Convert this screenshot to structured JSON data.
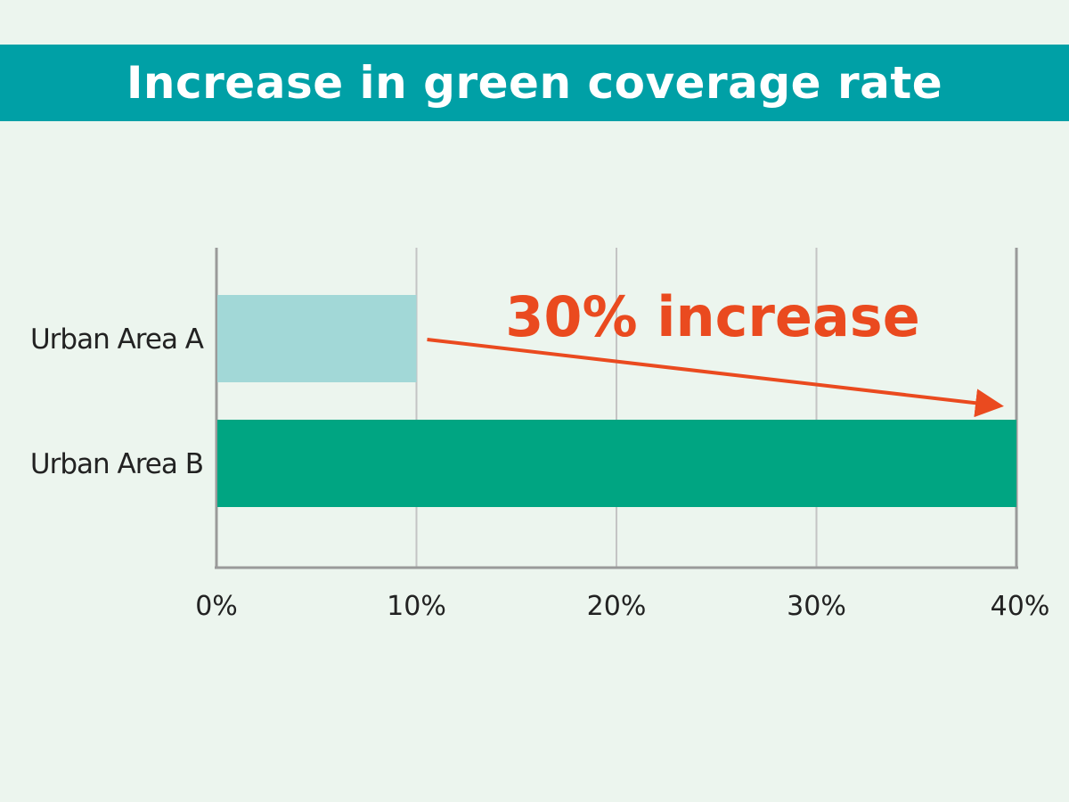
{
  "chart_data": {
    "type": "bar",
    "orientation": "horizontal",
    "title": "Increase in green coverage rate",
    "categories": [
      "Urban Area A",
      "Urban Area B"
    ],
    "values": [
      10,
      40
    ],
    "unit": "%",
    "xlim": [
      0,
      40
    ],
    "x_ticks": [
      "0%",
      "10%",
      "20%",
      "30%",
      "40%"
    ],
    "grid": "vertical",
    "annotation": {
      "text": "30% increase",
      "arrow_from": 10,
      "arrow_to": 40
    },
    "colors": {
      "bar_a": "#a2d8d7",
      "bar_b": "#00a582",
      "annotation": "#ea4a1f",
      "banner": "#00a0a6",
      "background": "#ecf5ee"
    }
  }
}
